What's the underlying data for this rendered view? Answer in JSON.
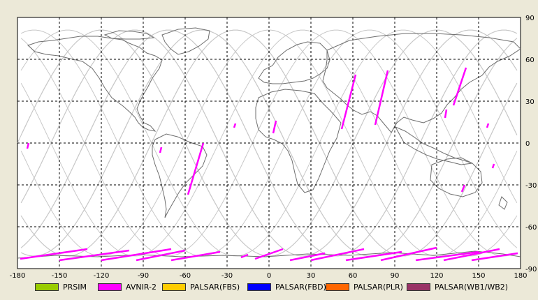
{
  "map": {
    "lon_ticks": [
      "-180",
      "-150",
      "-120",
      "-90",
      "-60",
      "-30",
      "0",
      "30",
      "60",
      "90",
      "120",
      "150",
      "180"
    ],
    "lat_ticks": [
      "90",
      "60",
      "30",
      "0",
      "-30",
      "-60",
      "-90"
    ],
    "colors": {
      "background": "#ece9d8",
      "map_bg": "#ffffff",
      "coast": "#6e6e6e",
      "orbit": "#c8c8c8",
      "grid": "#000000",
      "avnir_track": "#ff00ff"
    }
  },
  "legend": [
    {
      "label": "PRSIM",
      "color": "#99cc00"
    },
    {
      "label": "AVNIR-2",
      "color": "#ff00ff"
    },
    {
      "label": "PALSAR(FBS)",
      "color": "#ffcc00"
    },
    {
      "label": "PALSAR(FBD)",
      "color": "#0000ff"
    },
    {
      "label": "PALSAR(PLR)",
      "color": "#ff6600"
    },
    {
      "label": "PALSAR(WB1/WB2)",
      "color": "#993366"
    }
  ]
}
